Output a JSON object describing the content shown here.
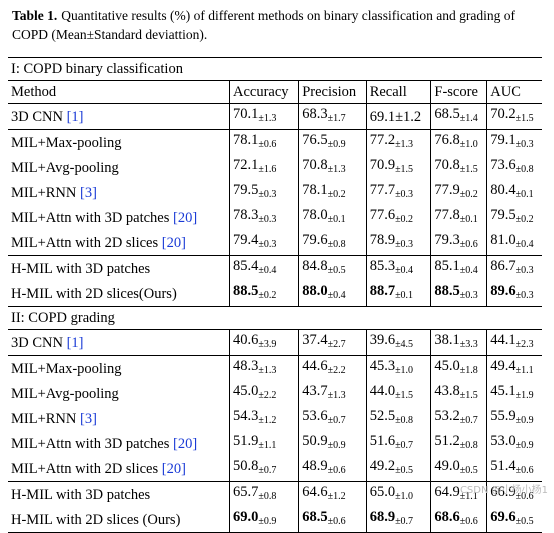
{
  "caption": {
    "label": "Table 1.",
    "text": "Quantitative results (%) of different methods on binary classification and grading of COPD (Mean±Standard deviattion)."
  },
  "header": [
    "Method",
    "Accuracy",
    "Precision",
    "Recall",
    "F-score",
    "AUC"
  ],
  "sections": [
    {
      "title": "I: COPD binary classification",
      "groups": [
        [
          {
            "name": "3D CNN ",
            "ref": "[1]",
            "cells": [
              {
                "mean": "70.1",
                "sd": "±1.3"
              },
              {
                "mean": "68.3",
                "sd": "±1.7"
              },
              {
                "mean": "69.1±1.2",
                "sd": ""
              },
              {
                "mean": "68.5",
                "sd": "±1.4"
              },
              {
                "mean": "70.2",
                "sd": "±1.5"
              }
            ]
          }
        ],
        [
          {
            "name": "MIL+Max-pooling",
            "ref": "",
            "cells": [
              {
                "mean": "78.1",
                "sd": "±0.6"
              },
              {
                "mean": "76.5",
                "sd": "±0.9"
              },
              {
                "mean": "77.2",
                "sd": "±1.3"
              },
              {
                "mean": "76.8",
                "sd": "±1.0"
              },
              {
                "mean": "79.1",
                "sd": "±0.3"
              }
            ]
          },
          {
            "name": "MIL+Avg-pooling",
            "ref": "",
            "cells": [
              {
                "mean": "72.1",
                "sd": "±1.6"
              },
              {
                "mean": "70.8",
                "sd": "±1.3"
              },
              {
                "mean": "70.9",
                "sd": "±1.5"
              },
              {
                "mean": "70.8",
                "sd": "±1.5"
              },
              {
                "mean": "73.6",
                "sd": "±0.8"
              }
            ]
          },
          {
            "name": "MIL+RNN ",
            "ref": "[3]",
            "cells": [
              {
                "mean": "79.5",
                "sd": "±0.3"
              },
              {
                "mean": "78.1",
                "sd": "±0.2"
              },
              {
                "mean": "77.7",
                "sd": "±0.3"
              },
              {
                "mean": "77.9",
                "sd": "±0.2"
              },
              {
                "mean": "80.4",
                "sd": "±0.1"
              }
            ]
          },
          {
            "name": "MIL+Attn with 3D patches ",
            "ref": "[20]",
            "cells": [
              {
                "mean": "78.3",
                "sd": "±0.3"
              },
              {
                "mean": "78.0",
                "sd": "±0.1"
              },
              {
                "mean": "77.6",
                "sd": "±0.2"
              },
              {
                "mean": "77.8",
                "sd": "±0.1"
              },
              {
                "mean": "79.5",
                "sd": "±0.2"
              }
            ]
          },
          {
            "name": "MIL+Attn with 2D slices ",
            "ref": "[20]",
            "cells": [
              {
                "mean": "79.4",
                "sd": "±0.3"
              },
              {
                "mean": "79.6",
                "sd": "±0.8"
              },
              {
                "mean": "78.9",
                "sd": "±0.3"
              },
              {
                "mean": "79.3",
                "sd": "±0.6"
              },
              {
                "mean": "81.0",
                "sd": "±0.4"
              }
            ]
          }
        ],
        [
          {
            "name": "H-MIL with 3D patches",
            "ref": "",
            "cells": [
              {
                "mean": "85.4",
                "sd": "±0.4"
              },
              {
                "mean": "84.8",
                "sd": "±0.5"
              },
              {
                "mean": "85.3",
                "sd": "±0.4"
              },
              {
                "mean": "85.1",
                "sd": "±0.4"
              },
              {
                "mean": "86.7",
                "sd": "±0.3"
              }
            ]
          },
          {
            "name": "H-MIL with 2D slices(Ours)",
            "ref": "",
            "cells": [
              {
                "mean": "88.5",
                "sd": "±0.2"
              },
              {
                "mean": "88.0",
                "sd": "±0.4"
              },
              {
                "mean": "88.7",
                "sd": "±0.1"
              },
              {
                "mean": "88.5",
                "sd": "±0.3"
              },
              {
                "mean": "89.6",
                "sd": "±0.3"
              }
            ]
          }
        ]
      ]
    },
    {
      "title": "II: COPD grading",
      "groups": [
        [
          {
            "name": "3D CNN ",
            "ref": "[1]",
            "cells": [
              {
                "mean": "40.6",
                "sd": "±3.9"
              },
              {
                "mean": "37.4",
                "sd": "±2.7"
              },
              {
                "mean": "39.6",
                "sd": "±4.5"
              },
              {
                "mean": "38.1",
                "sd": "±3.3"
              },
              {
                "mean": "44.1",
                "sd": "±2.3"
              }
            ]
          }
        ],
        [
          {
            "name": "MIL+Max-pooling",
            "ref": "",
            "cells": [
              {
                "mean": "48.3",
                "sd": "±1.3"
              },
              {
                "mean": "44.6",
                "sd": "±2.2"
              },
              {
                "mean": "45.3",
                "sd": "±1.0"
              },
              {
                "mean": "45.0",
                "sd": "±1.8"
              },
              {
                "mean": "49.4",
                "sd": "±1.1"
              }
            ]
          },
          {
            "name": "MIL+Avg-pooling",
            "ref": "",
            "cells": [
              {
                "mean": "45.0",
                "sd": "±2.2"
              },
              {
                "mean": "43.7",
                "sd": "±1.3"
              },
              {
                "mean": "44.0",
                "sd": "±1.5"
              },
              {
                "mean": "43.8",
                "sd": "±1.5"
              },
              {
                "mean": "45.1",
                "sd": "±1.9"
              }
            ]
          },
          {
            "name": "MIL+RNN ",
            "ref": "[3]",
            "cells": [
              {
                "mean": "54.3",
                "sd": "±1.2"
              },
              {
                "mean": "53.6",
                "sd": "±0.7"
              },
              {
                "mean": "52.5",
                "sd": "±0.8"
              },
              {
                "mean": "53.2",
                "sd": "±0.7"
              },
              {
                "mean": "55.9",
                "sd": "±0.9"
              }
            ]
          },
          {
            "name": "MIL+Attn with 3D patches ",
            "ref": "[20]",
            "cells": [
              {
                "mean": "51.9",
                "sd": "±1.1"
              },
              {
                "mean": "50.9",
                "sd": "±0.9"
              },
              {
                "mean": "51.6",
                "sd": "±0.7"
              },
              {
                "mean": "51.2",
                "sd": "±0.8"
              },
              {
                "mean": "53.0",
                "sd": "±0.9"
              }
            ]
          },
          {
            "name": "MIL+Attn with 2D slices ",
            "ref": "[20]",
            "cells": [
              {
                "mean": "50.8",
                "sd": "±0.7"
              },
              {
                "mean": "48.9",
                "sd": "±0.6"
              },
              {
                "mean": "49.2",
                "sd": "±0.5"
              },
              {
                "mean": "49.0",
                "sd": "±0.5"
              },
              {
                "mean": "51.4",
                "sd": "±0.6"
              }
            ]
          }
        ],
        [
          {
            "name": "H-MIL with 3D patches",
            "ref": "",
            "cells": [
              {
                "mean": "65.7",
                "sd": "±0.8"
              },
              {
                "mean": "64.6",
                "sd": "±1.2"
              },
              {
                "mean": "65.0",
                "sd": "±1.0"
              },
              {
                "mean": "64.9",
                "sd": "±1.1"
              },
              {
                "mean": "66.9",
                "sd": "±0.6"
              }
            ]
          },
          {
            "name": "H-MIL with 2D slices (Ours)",
            "ref": "",
            "cells": [
              {
                "mean": "69.0",
                "sd": "±0.9"
              },
              {
                "mean": "68.5",
                "sd": "±0.6"
              },
              {
                "mean": "68.9",
                "sd": "±0.7"
              },
              {
                "mean": "68.6",
                "sd": "±0.6"
              },
              {
                "mean": "69.6",
                "sd": "±0.5"
              }
            ]
          }
        ]
      ]
    }
  ],
  "watermark": "CSDN @小杨小杨1"
}
